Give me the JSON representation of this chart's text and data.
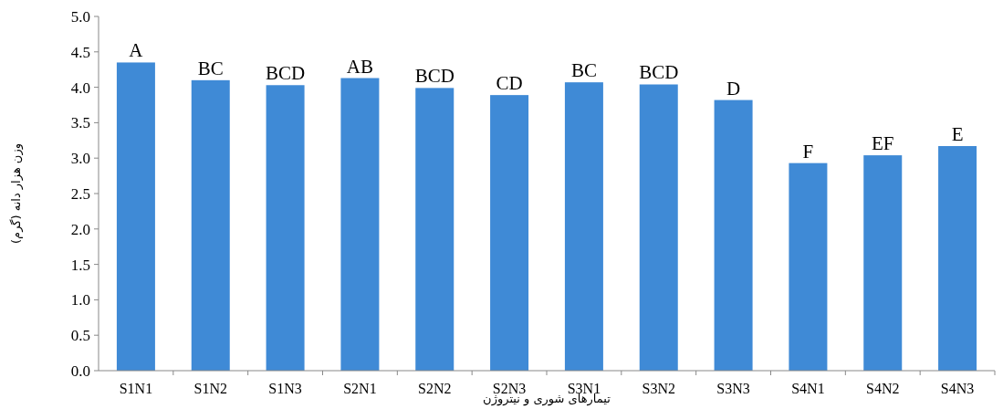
{
  "chart_data": {
    "type": "bar",
    "xlabel": "تیمارهای شوری و نیتروژن",
    "ylabel": "وزن هزار دانه (گرم)",
    "categories": [
      "S1N1",
      "S1N2",
      "S1N3",
      "S2N1",
      "S2N2",
      "S2N3",
      "S3N1",
      "S3N2",
      "S3N3",
      "S4N1",
      "S4N2",
      "S4N3"
    ],
    "values": [
      4.35,
      4.1,
      4.03,
      4.13,
      3.99,
      3.89,
      4.07,
      4.04,
      3.82,
      2.93,
      3.04,
      3.17
    ],
    "value_labels": [
      "A",
      "BC",
      "BCD",
      "AB",
      "BCD",
      "CD",
      "BC",
      "BCD",
      "D",
      "F",
      "EF",
      "E"
    ],
    "color": "#3f8ad6",
    "ylim": [
      0,
      5
    ],
    "yticks": [
      {
        "value": 0,
        "label": "0.0"
      },
      {
        "value": 0.5,
        "label": "0.5"
      },
      {
        "value": 1,
        "label": "1.0"
      },
      {
        "value": 1.5,
        "label": "1.5"
      },
      {
        "value": 2,
        "label": "2.0"
      },
      {
        "value": 2.5,
        "label": "2.5"
      },
      {
        "value": 3,
        "label": "3.0"
      },
      {
        "value": 3.5,
        "label": "3.5"
      },
      {
        "value": 4,
        "label": "4.0"
      },
      {
        "value": 4.5,
        "label": "4.5"
      },
      {
        "value": 5,
        "label": "5.0"
      }
    ],
    "grid": false
  }
}
